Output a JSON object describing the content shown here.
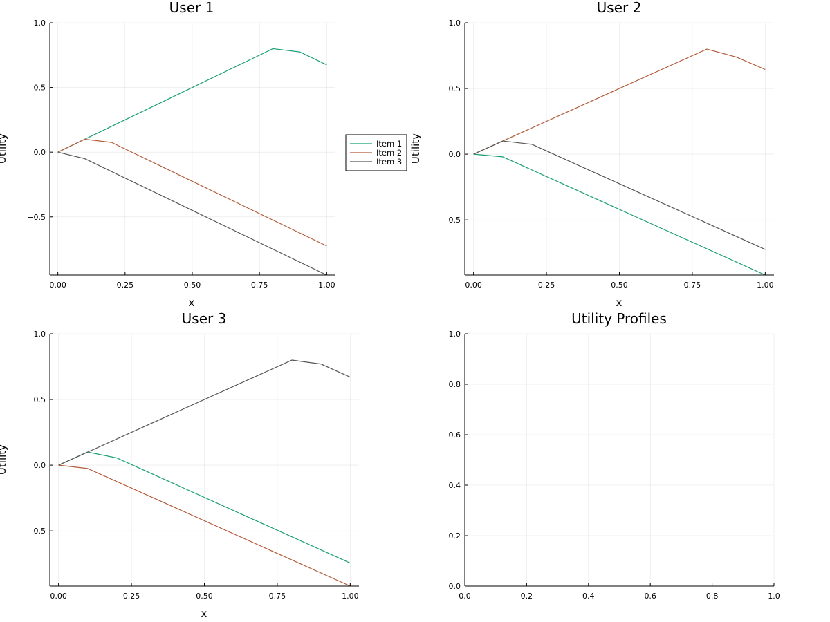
{
  "colors": {
    "item1": "#1a9e77",
    "item2": "#b35a3a",
    "item3": "#555555"
  },
  "chart_data": [
    {
      "type": "line",
      "title": "User 1",
      "xlabel": "x",
      "ylabel": "Utility",
      "xlim": [
        -0.03,
        1.03
      ],
      "ylim": [
        -0.95,
        1.0
      ],
      "xticks": [
        0.0,
        0.25,
        0.5,
        0.75,
        1.0
      ],
      "xtick_labels": [
        "0.00",
        "0.25",
        "0.50",
        "0.75",
        "1.00"
      ],
      "yticks": [
        -0.5,
        0.0,
        0.5,
        1.0
      ],
      "ytick_labels": [
        "−0.5",
        "0.0",
        "0.5",
        "1.0"
      ],
      "grid": true,
      "legend": {
        "placement": "outside-right",
        "entries": [
          "Item 1",
          "Item 2",
          "Item 3"
        ]
      },
      "series": [
        {
          "name": "Item 1",
          "color": "#1a9e77",
          "x": [
            0.0,
            0.1,
            0.8,
            0.9,
            1.0
          ],
          "y": [
            0.0,
            0.1,
            0.8,
            0.775,
            0.675
          ]
        },
        {
          "name": "Item 2",
          "color": "#b35a3a",
          "x": [
            0.0,
            0.1,
            0.2,
            1.0
          ],
          "y": [
            0.0,
            0.1,
            0.075,
            -0.725
          ]
        },
        {
          "name": "Item 3",
          "color": "#555555",
          "x": [
            0.0,
            0.1,
            1.0
          ],
          "y": [
            0.0,
            -0.05,
            -0.95
          ]
        }
      ]
    },
    {
      "type": "line",
      "title": "User 2",
      "xlabel": "x",
      "ylabel": "Utility",
      "xlim": [
        -0.03,
        1.03
      ],
      "ylim": [
        -0.92,
        1.0
      ],
      "xticks": [
        0.0,
        0.25,
        0.5,
        0.75,
        1.0
      ],
      "xtick_labels": [
        "0.00",
        "0.25",
        "0.50",
        "0.75",
        "1.00"
      ],
      "yticks": [
        -0.5,
        0.0,
        0.5,
        1.0
      ],
      "ytick_labels": [
        "−0.5",
        "0.0",
        "0.5",
        "1.0"
      ],
      "grid": true,
      "series": [
        {
          "name": "Item 1",
          "color": "#1a9e77",
          "x": [
            0.0,
            0.1,
            1.0
          ],
          "y": [
            0.0,
            -0.02,
            -0.92
          ]
        },
        {
          "name": "Item 2",
          "color": "#b35a3a",
          "x": [
            0.0,
            0.1,
            0.8,
            0.9,
            1.0
          ],
          "y": [
            0.0,
            0.1,
            0.8,
            0.74,
            0.645
          ]
        },
        {
          "name": "Item 3",
          "color": "#555555",
          "x": [
            0.0,
            0.1,
            0.2,
            1.0
          ],
          "y": [
            0.0,
            0.1,
            0.075,
            -0.725
          ]
        }
      ]
    },
    {
      "type": "line",
      "title": "User 3",
      "xlabel": "x",
      "ylabel": "Utility",
      "xlim": [
        -0.03,
        1.03
      ],
      "ylim": [
        -0.92,
        1.0
      ],
      "xticks": [
        0.0,
        0.25,
        0.5,
        0.75,
        1.0
      ],
      "xtick_labels": [
        "0.00",
        "0.25",
        "0.50",
        "0.75",
        "1.00"
      ],
      "yticks": [
        -0.5,
        0.0,
        0.5,
        1.0
      ],
      "ytick_labels": [
        "−0.5",
        "0.0",
        "0.5",
        "1.0"
      ],
      "grid": true,
      "series": [
        {
          "name": "Item 1",
          "color": "#1a9e77",
          "x": [
            0.0,
            0.1,
            0.2,
            1.0
          ],
          "y": [
            0.0,
            0.1,
            0.055,
            -0.745
          ]
        },
        {
          "name": "Item 2",
          "color": "#b35a3a",
          "x": [
            0.0,
            0.1,
            1.0
          ],
          "y": [
            0.0,
            -0.025,
            -0.92
          ]
        },
        {
          "name": "Item 3",
          "color": "#555555",
          "x": [
            0.0,
            0.1,
            0.8,
            0.9,
            1.0
          ],
          "y": [
            0.0,
            0.1,
            0.8,
            0.77,
            0.67
          ]
        }
      ]
    },
    {
      "type": "line",
      "title": "Utility Profiles",
      "xlabel": "",
      "ylabel": "",
      "xlim": [
        0.0,
        1.0
      ],
      "ylim": [
        0.0,
        1.0
      ],
      "xticks": [
        0.0,
        0.2,
        0.4,
        0.6,
        0.8,
        1.0
      ],
      "xtick_labels": [
        "0.0",
        "0.2",
        "0.4",
        "0.6",
        "0.8",
        "1.0"
      ],
      "yticks": [
        0.0,
        0.2,
        0.4,
        0.6,
        0.8,
        1.0
      ],
      "ytick_labels": [
        "0.0",
        "0.2",
        "0.4",
        "0.6",
        "0.8",
        "1.0"
      ],
      "grid": true,
      "series": []
    }
  ]
}
